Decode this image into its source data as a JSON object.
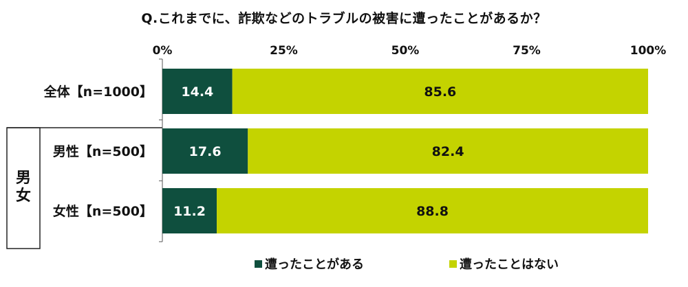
{
  "chart_data": {
    "type": "bar",
    "stacked": true,
    "orientation": "horizontal",
    "title": "Q.これまでに、詐欺などのトラブルの被害に遭ったことがあるか？",
    "xlim": [
      0,
      100
    ],
    "x_ticks": [
      "0%",
      "25%",
      "50%",
      "75%",
      "100%"
    ],
    "group_label": "男女",
    "categories": [
      "全体【n=1000】",
      "男性【n=500】",
      "女性【n=500】"
    ],
    "series": [
      {
        "name": "遭ったことがある",
        "color": "#0f4f3e",
        "label_color": "#ffffff",
        "values": [
          14.4,
          17.6,
          11.2
        ]
      },
      {
        "name": "遭ったことはない",
        "color": "#c4d300",
        "label_color": "#111111",
        "values": [
          85.6,
          82.4,
          88.8
        ]
      }
    ],
    "legend_position": "bottom"
  }
}
